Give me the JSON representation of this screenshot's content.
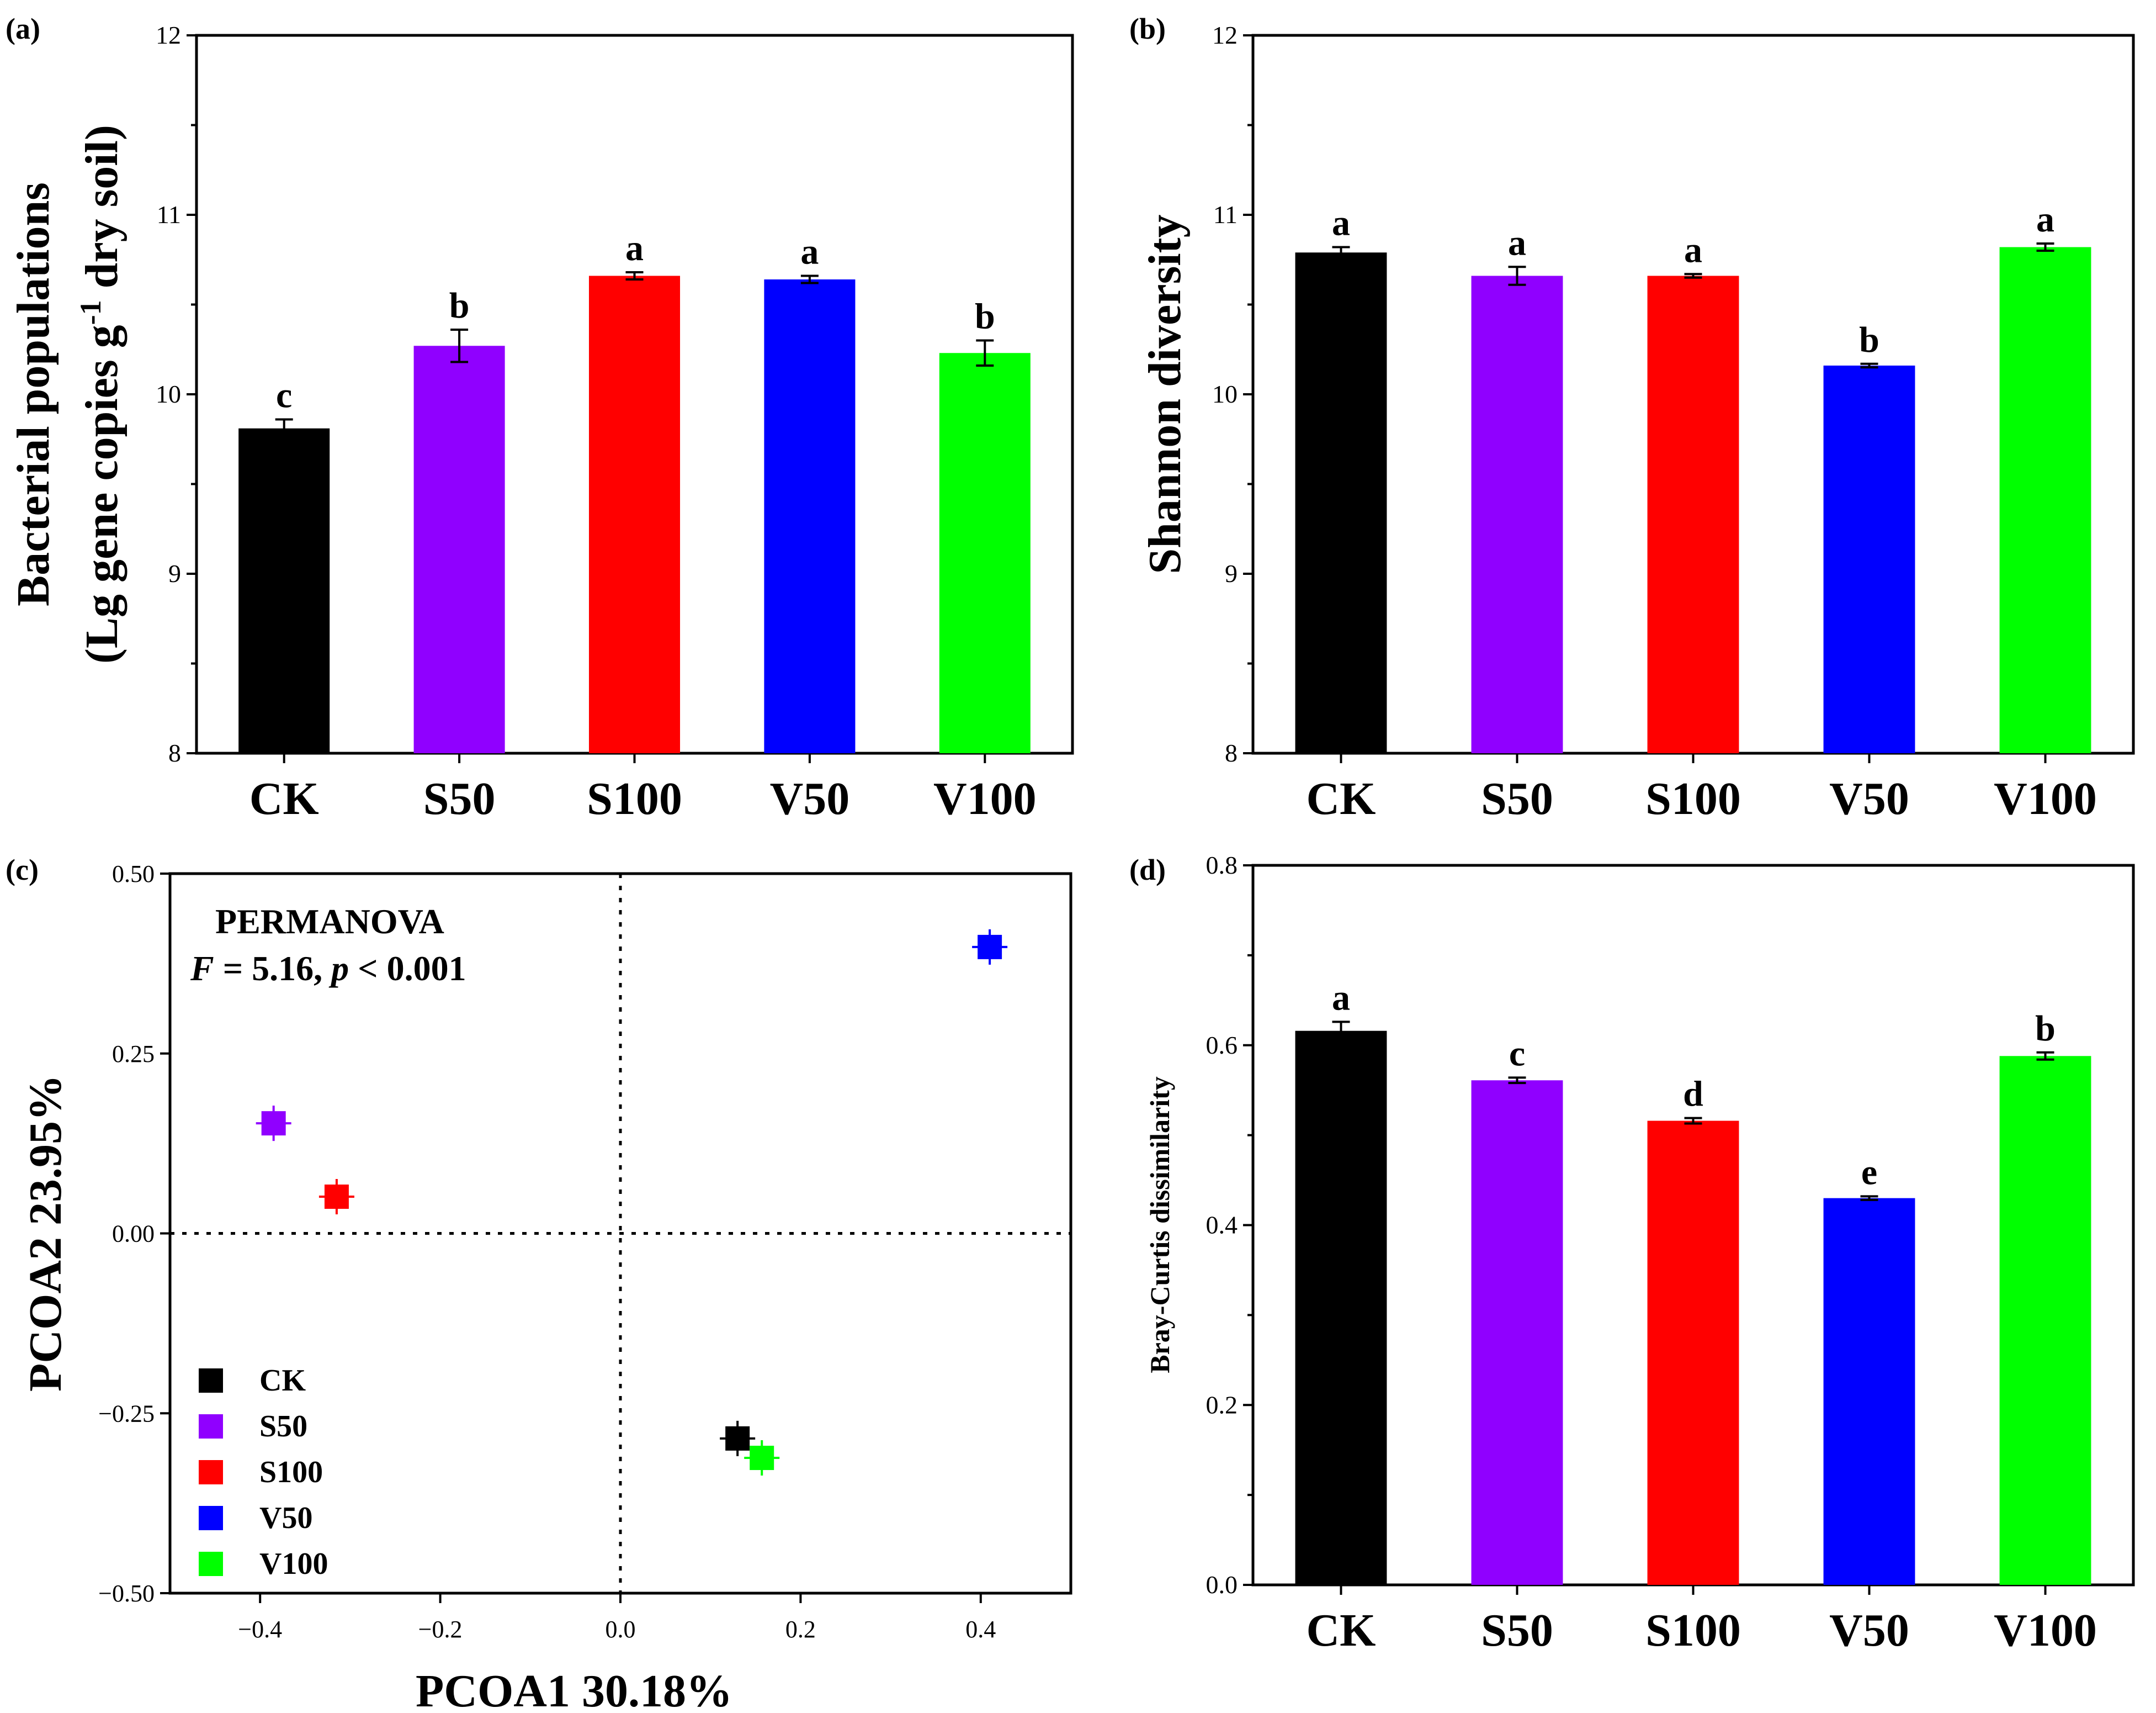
{
  "colors": {
    "CK": "#000000",
    "S50": "#9000ff",
    "S100": "#ff0000",
    "V50": "#0000ff",
    "V100": "#00ff00"
  },
  "chart_data": [
    {
      "panel": "(a)",
      "type": "bar",
      "categories": [
        "CK",
        "S50",
        "S100",
        "V50",
        "V100"
      ],
      "values": [
        9.81,
        10.27,
        10.66,
        10.64,
        10.23
      ],
      "errors": [
        0.05,
        0.09,
        0.02,
        0.02,
        0.07
      ],
      "letters": [
        "c",
        "b",
        "a",
        "a",
        "b"
      ],
      "ylabel_line1": "Bacterial populations",
      "ylabel_line2_pre": "(Lg gene copies g",
      "ylabel_sup": "-1",
      "ylabel_line2_post": " dry soil)",
      "ylim": [
        8,
        12
      ],
      "yticks": [
        "8",
        "9",
        "10",
        "11",
        "12"
      ]
    },
    {
      "panel": "(b)",
      "type": "bar",
      "categories": [
        "CK",
        "S50",
        "S100",
        "V50",
        "V100"
      ],
      "values": [
        10.79,
        10.66,
        10.66,
        10.16,
        10.82
      ],
      "errors": [
        0.03,
        0.05,
        0.01,
        0.01,
        0.02
      ],
      "letters": [
        "a",
        "a",
        "a",
        "b",
        "a"
      ],
      "ylabel": "Shannon diversity",
      "ylim": [
        8,
        12
      ],
      "yticks": [
        "8",
        "9",
        "10",
        "11",
        "12"
      ]
    },
    {
      "panel": "(c)",
      "type": "scatter",
      "xlabel": "PCOA1 30.18%",
      "ylabel": "PCOA2 23.95%",
      "xlim": [
        -0.5,
        0.5
      ],
      "ylim": [
        -0.5,
        0.5
      ],
      "xticks": [
        "−0.4",
        "−0.2",
        "0.0",
        "0.2",
        "0.4"
      ],
      "yticks": [
        "−0.50",
        "−0.25",
        "0.00",
        "0.25",
        "0.50"
      ],
      "points": [
        {
          "name": "S50",
          "x": -0.385,
          "y": 0.153
        },
        {
          "name": "S100",
          "x": -0.315,
          "y": 0.051
        },
        {
          "name": "V50",
          "x": 0.41,
          "y": 0.398
        },
        {
          "name": "CK",
          "x": 0.13,
          "y": -0.285
        },
        {
          "name": "V100",
          "x": 0.157,
          "y": -0.312
        }
      ],
      "legend": [
        "CK",
        "S50",
        "S100",
        "V50",
        "V100"
      ],
      "annotation_title": "PERMANOVA",
      "annotation_F": "F",
      "annotation_mid": " = 5.16, ",
      "annotation_p": "p",
      "annotation_end": " < 0.001"
    },
    {
      "panel": "(d)",
      "type": "bar",
      "categories": [
        "CK",
        "S50",
        "S100",
        "V50",
        "V100"
      ],
      "values": [
        0.616,
        0.561,
        0.516,
        0.43,
        0.588
      ],
      "errors": [
        0.01,
        0.003,
        0.003,
        0.002,
        0.004
      ],
      "letters": [
        "a",
        "c",
        "d",
        "e",
        "b"
      ],
      "ylabel": "Bray-Curtis dissimilarity",
      "ylim": [
        0,
        0.8
      ],
      "yticks": [
        "0.0",
        "0.2",
        "0.4",
        "0.6",
        "0.8"
      ]
    }
  ]
}
